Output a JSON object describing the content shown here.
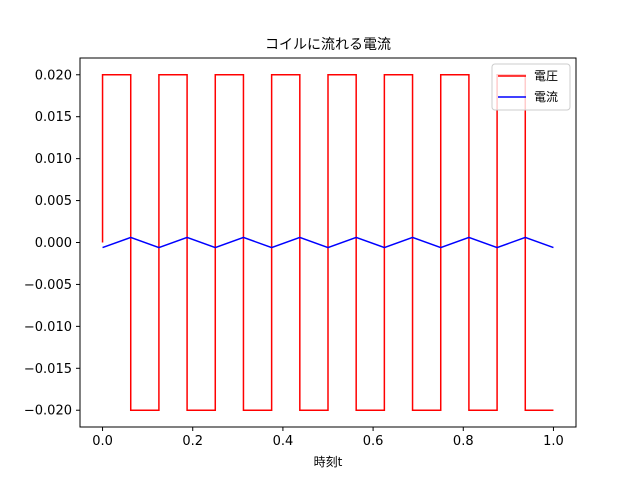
{
  "chart_data": {
    "type": "line",
    "title": "コイルに流れる電流",
    "xlabel": "時刻t",
    "ylabel": "",
    "xlim": [
      -0.05,
      1.05
    ],
    "ylim": [
      -0.022,
      0.022
    ],
    "grid": false,
    "legend_position": "top-right",
    "x_ticks": [
      {
        "value": 0.0,
        "label": "0.0"
      },
      {
        "value": 0.2,
        "label": "0.2"
      },
      {
        "value": 0.4,
        "label": "0.4"
      },
      {
        "value": 0.6,
        "label": "0.6"
      },
      {
        "value": 0.8,
        "label": "0.8"
      },
      {
        "value": 1.0,
        "label": "1.0"
      }
    ],
    "y_ticks": [
      {
        "value": 0.02,
        "label": "0.020"
      },
      {
        "value": 0.015,
        "label": "0.015"
      },
      {
        "value": 0.01,
        "label": "0.010"
      },
      {
        "value": 0.005,
        "label": "0.005"
      },
      {
        "value": 0.0,
        "label": "0.000"
      },
      {
        "value": -0.005,
        "label": "−0.005"
      },
      {
        "value": -0.01,
        "label": "−0.010"
      },
      {
        "value": -0.015,
        "label": "−0.015"
      },
      {
        "value": -0.02,
        "label": "−0.020"
      }
    ],
    "series": [
      {
        "name": "電圧",
        "color": "#ff0000",
        "x": [
          0.0,
          0.0,
          0.0625,
          0.0625,
          0.125,
          0.125,
          0.1875,
          0.1875,
          0.25,
          0.25,
          0.3125,
          0.3125,
          0.375,
          0.375,
          0.4375,
          0.4375,
          0.5,
          0.5,
          0.5625,
          0.5625,
          0.625,
          0.625,
          0.6875,
          0.6875,
          0.75,
          0.75,
          0.8125,
          0.8125,
          0.875,
          0.875,
          0.9375,
          0.9375,
          1.0
        ],
        "y": [
          0.0,
          0.02,
          0.02,
          -0.02,
          -0.02,
          0.02,
          0.02,
          -0.02,
          -0.02,
          0.02,
          0.02,
          -0.02,
          -0.02,
          0.02,
          0.02,
          -0.02,
          -0.02,
          0.02,
          0.02,
          -0.02,
          -0.02,
          0.02,
          0.02,
          -0.02,
          -0.02,
          0.02,
          0.02,
          -0.02,
          -0.02,
          0.02,
          0.02,
          -0.02,
          -0.02
        ]
      },
      {
        "name": "電流",
        "color": "#0000ff",
        "x": [
          0.0,
          0.0625,
          0.125,
          0.1875,
          0.25,
          0.3125,
          0.375,
          0.4375,
          0.5,
          0.5625,
          0.625,
          0.6875,
          0.75,
          0.8125,
          0.875,
          0.9375,
          1.0
        ],
        "y": [
          -0.0006,
          0.0006,
          -0.0006,
          0.0006,
          -0.0006,
          0.0006,
          -0.0006,
          0.0006,
          -0.0006,
          0.0006,
          -0.0006,
          0.0006,
          -0.0006,
          0.0006,
          -0.0006,
          0.0006,
          -0.0006
        ]
      }
    ]
  }
}
